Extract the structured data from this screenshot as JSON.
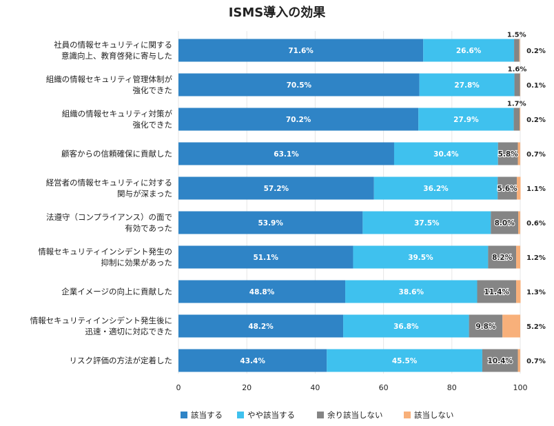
{
  "chart_data": {
    "type": "bar",
    "orientation": "horizontal",
    "stacked": true,
    "title": "ISMS導入の効果",
    "categories": [
      [
        "社員の情報セキュリティに関する",
        "意識向上、教育啓発に寄与した"
      ],
      [
        "組織の情報セキュリティ管理体制が",
        "強化できた"
      ],
      [
        "組織の情報セキュリティ対策が",
        "強化できた"
      ],
      [
        "顧客からの信頼確保に貢献した"
      ],
      [
        "経営者の情報セキュリティに対する",
        "関与が深まった"
      ],
      [
        "法遵守（コンプライアンス）の面で",
        "有効であった"
      ],
      [
        "情報セキュリティインシデント発生の",
        "抑制に効果があった"
      ],
      [
        "企業イメージの向上に貢献した"
      ],
      [
        "情報セキュリティインシデント発生後に",
        "迅速・適切に対応できた"
      ],
      [
        "リスク評価の方法が定着した"
      ]
    ],
    "series": [
      {
        "name": "該当する",
        "color": "#2f84c6",
        "values": [
          71.6,
          70.5,
          70.2,
          63.1,
          57.2,
          53.9,
          51.1,
          48.8,
          48.2,
          43.4
        ]
      },
      {
        "name": "やや該当する",
        "color": "#3fc1ee",
        "values": [
          26.6,
          27.8,
          27.9,
          30.4,
          36.2,
          37.5,
          39.5,
          38.6,
          36.8,
          45.5
        ]
      },
      {
        "name": "余り該当しない",
        "color": "#858585",
        "values": [
          1.5,
          1.6,
          1.7,
          5.8,
          5.6,
          8.0,
          8.2,
          11.4,
          9.8,
          10.4
        ]
      },
      {
        "name": "該当しない",
        "color": "#f8b07a",
        "values": [
          0.2,
          0.1,
          0.2,
          0.7,
          1.1,
          0.6,
          1.2,
          1.3,
          5.2,
          0.7
        ]
      }
    ],
    "value_suffix": "%",
    "xlim": [
      0,
      100
    ],
    "xticks": [
      0,
      20,
      40,
      60,
      80,
      100
    ],
    "grid": true,
    "legend": "bottom"
  }
}
